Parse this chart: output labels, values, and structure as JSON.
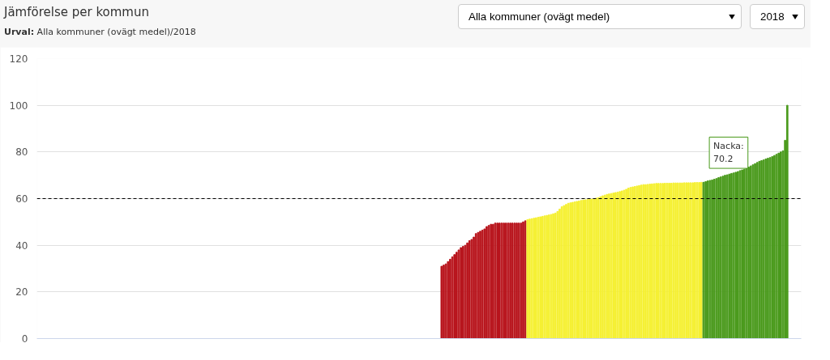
{
  "chart_data": {
    "type": "bar",
    "title": "Jämförelse per kommun",
    "subtitle": "Urval: Alla kommuner (ovägt medel)/2018",
    "categories": [
      null,
      null,
      null,
      null,
      null,
      null,
      null,
      null,
      null,
      null,
      null,
      null,
      null,
      null,
      null,
      null,
      null,
      null,
      null,
      null,
      null,
      null,
      null,
      null,
      null,
      null,
      null,
      null,
      null,
      null,
      null,
      null,
      null,
      null,
      null,
      null,
      null,
      null,
      null,
      null,
      null,
      null,
      null,
      null,
      null,
      null,
      null,
      null,
      null,
      null,
      null,
      null,
      null,
      null,
      null,
      null,
      null,
      null,
      null,
      null,
      null,
      null,
      null,
      null,
      null,
      null,
      null,
      null,
      null,
      null,
      null,
      null,
      null,
      null,
      null,
      null,
      null,
      null,
      null,
      null,
      null,
      null,
      null,
      null,
      null,
      null,
      null,
      null,
      null,
      null,
      null,
      null,
      null,
      null,
      null,
      null,
      null,
      null,
      null,
      null,
      null,
      null,
      null,
      null,
      null,
      null,
      null,
      null,
      null,
      null,
      null,
      null,
      null,
      null,
      null,
      null,
      null,
      null,
      null,
      null,
      null,
      null,
      null,
      null,
      null,
      null,
      null,
      null,
      null,
      null,
      null,
      null,
      null,
      null,
      null,
      null,
      null,
      null,
      null,
      null,
      null,
      null,
      null,
      null,
      null,
      null,
      null,
      null,
      null,
      null,
      null,
      null,
      null,
      null,
      null,
      null,
      null,
      null,
      null,
      null,
      null,
      null,
      null,
      null,
      null,
      null,
      null,
      null,
      null,
      null,
      null,
      null,
      null,
      null,
      null,
      null,
      null,
      null,
      null,
      null,
      null,
      null,
      null,
      null,
      null,
      null,
      null,
      null,
      null,
      null,
      null,
      null,
      null,
      null,
      null,
      null,
      null,
      null,
      null,
      null,
      null,
      null,
      null,
      null,
      null,
      null,
      null,
      null,
      null,
      null,
      null,
      null,
      null,
      null,
      null,
      null,
      null,
      null,
      null,
      null,
      null,
      null,
      null,
      null,
      null,
      null,
      null,
      null,
      null,
      null,
      null,
      null,
      null,
      null,
      null,
      null,
      null,
      null,
      null,
      null,
      null,
      null,
      null,
      null,
      null,
      null,
      null,
      null,
      null,
      null,
      null,
      null,
      null,
      null,
      null,
      null,
      null,
      null,
      null,
      null,
      null,
      null,
      null,
      null,
      null,
      null,
      null,
      null,
      null,
      null,
      null,
      null,
      null,
      null,
      null,
      null,
      null,
      null,
      null,
      null,
      null,
      null,
      null,
      null,
      null,
      null,
      null,
      null,
      null,
      null,
      null,
      null,
      null,
      null,
      null,
      null,
      null,
      null,
      null,
      null,
      null,
      null,
      null,
      null,
      null,
      null,
      null,
      null,
      null,
      null,
      null,
      null,
      null,
      null,
      null,
      null,
      null,
      null,
      null,
      null,
      null,
      null,
      null,
      null,
      null,
      null,
      null,
      null,
      null,
      null,
      null,
      null,
      null,
      null,
      null,
      null,
      null,
      null,
      null,
      null,
      null,
      null,
      null,
      null,
      null,
      null,
      null,
      null,
      null,
      null,
      null,
      null,
      null,
      null,
      null,
      null
    ],
    "values": [
      null,
      null,
      null,
      null,
      null,
      null,
      null,
      null,
      null,
      null,
      null,
      null,
      null,
      null,
      null,
      null,
      null,
      null,
      null,
      null,
      null,
      null,
      null,
      null,
      null,
      null,
      null,
      null,
      null,
      null,
      null,
      null,
      null,
      null,
      null,
      null,
      null,
      null,
      null,
      null,
      null,
      null,
      null,
      null,
      null,
      null,
      null,
      null,
      null,
      null,
      null,
      null,
      null,
      null,
      null,
      null,
      null,
      null,
      null,
      null,
      null,
      null,
      null,
      null,
      null,
      null,
      null,
      null,
      null,
      null,
      null,
      null,
      null,
      null,
      null,
      null,
      null,
      null,
      null,
      null,
      null,
      null,
      null,
      null,
      null,
      null,
      null,
      null,
      null,
      null,
      null,
      null,
      null,
      null,
      null,
      null,
      null,
      null,
      null,
      null,
      null,
      null,
      null,
      null,
      null,
      null,
      null,
      null,
      null,
      null,
      null,
      null,
      null,
      null,
      null,
      null,
      null,
      null,
      null,
      null,
      null,
      null,
      null,
      null,
      null,
      null,
      null,
      null,
      null,
      null,
      null,
      null,
      null,
      null,
      null,
      null,
      null,
      null,
      null,
      null,
      null,
      null,
      null,
      null,
      null,
      null,
      null,
      null,
      null,
      null,
      null,
      null,
      null,
      null,
      null,
      null,
      null,
      null,
      null,
      null,
      null,
      null,
      null,
      null,
      null,
      null,
      null,
      null,
      null,
      null,
      null,
      null,
      null,
      null,
      null,
      null,
      null,
      null,
      null,
      null,
      null,
      null,
      null,
      null,
      null,
      null,
      null,
      null,
      31,
      31.5,
      32,
      33,
      34,
      35,
      36,
      37,
      38,
      39,
      39.5,
      40,
      41,
      42,
      42.5,
      43.5,
      45,
      45.5,
      46,
      46.5,
      47,
      48,
      48.5,
      49,
      49,
      49.5,
      49.5,
      49.5,
      49.5,
      49.5,
      49.5,
      49.5,
      49.5,
      49.5,
      49.5,
      49.5,
      49.5,
      49.5,
      50,
      50.5,
      51,
      51.2,
      51.4,
      51.6,
      51.8,
      52,
      52.2,
      52.4,
      52.6,
      52.8,
      53,
      53.2,
      53.5,
      53.8,
      54.5,
      55.5,
      56.5,
      57,
      57.5,
      58,
      58.2,
      58.4,
      58.6,
      58.8,
      59,
      59.2,
      59.4,
      59.5,
      59.6,
      59.7,
      59.8,
      60,
      60.2,
      60.4,
      60.8,
      61.2,
      61.5,
      61.8,
      62,
      62.2,
      62.4,
      62.6,
      62.8,
      63,
      63.3,
      63.6,
      64,
      64.5,
      64.8,
      65,
      65.2,
      65.4,
      65.6,
      65.8,
      66,
      66,
      66.1,
      66.2,
      66.3,
      66.4,
      66.5,
      66.5,
      66.5,
      66.5,
      66.6,
      66.6,
      66.6,
      66.6,
      66.7,
      66.7,
      66.7,
      66.7,
      66.7,
      66.8,
      66.8,
      66.8,
      66.8,
      66.8,
      66.9,
      66.9,
      66.9,
      67,
      67,
      67.3,
      67.6,
      67.8,
      68,
      68.3,
      68.6,
      69,
      69.3,
      69.6,
      70,
      70.2,
      70.5,
      70.8,
      71,
      71.3,
      71.6,
      72,
      72.3,
      72.6,
      73,
      73.5,
      74,
      74.5,
      75,
      75.5,
      76,
      76.3,
      76.6,
      77,
      77.3,
      77.6,
      78,
      78.5,
      79,
      79.5,
      80,
      80.5,
      85,
      100,
      null,
      null,
      null,
      null,
      null,
      null
    ],
    "colors": [
      null,
      null,
      null,
      null,
      null,
      null,
      null,
      null,
      null,
      null,
      null,
      null,
      null,
      null,
      null,
      null,
      null,
      null,
      null,
      null,
      null,
      null,
      null,
      null,
      null,
      null,
      null,
      null,
      null,
      null,
      null,
      null,
      null,
      null,
      null,
      null,
      null,
      null,
      null,
      null,
      null,
      null,
      null,
      null,
      null,
      null,
      null,
      null,
      null,
      null,
      null,
      null,
      null,
      null,
      null,
      null,
      null,
      null,
      null,
      null,
      null,
      null,
      null,
      null,
      null,
      null,
      null,
      null,
      null,
      null,
      null,
      null,
      null,
      null,
      null,
      null,
      null,
      null,
      null,
      null,
      null,
      null,
      null,
      null,
      null,
      null,
      null,
      null,
      null,
      null,
      null,
      null,
      null,
      null,
      null,
      null,
      null,
      null,
      null,
      null,
      null,
      null,
      null,
      null,
      null,
      null,
      null,
      null,
      null,
      null,
      null,
      null,
      null,
      null,
      null,
      null,
      null,
      null,
      null,
      null,
      null,
      null,
      null,
      null,
      null,
      null,
      null,
      null,
      null,
      null,
      null,
      null,
      null,
      null,
      null,
      null,
      null,
      null,
      null,
      null,
      null,
      null,
      null,
      null,
      null,
      null,
      null,
      null,
      null,
      null,
      null,
      null,
      null,
      null,
      null,
      null,
      null,
      null,
      null,
      null,
      null,
      null,
      null,
      null,
      null,
      null,
      null,
      null,
      null,
      null,
      null,
      null,
      null,
      null,
      null,
      null,
      null,
      null,
      null,
      null,
      null,
      null,
      null,
      null,
      null,
      null,
      null,
      null,
      "#b8141c",
      "#b8141c",
      "#b8141c",
      "#b8141c",
      "#b8141c",
      "#b8141c",
      "#b8141c",
      "#b8141c",
      "#b8141c",
      "#b8141c",
      "#b8141c",
      "#b8141c",
      "#b8141c",
      "#b8141c",
      "#b8141c",
      "#b8141c",
      "#b8141c",
      "#b8141c",
      "#b8141c",
      "#b8141c",
      "#b8141c",
      "#b8141c",
      "#b8141c",
      "#b8141c",
      "#b8141c",
      "#b8141c",
      "#b8141c",
      "#b8141c",
      "#b8141c",
      "#b8141c",
      "#b8141c",
      "#b8141c",
      "#b8141c",
      "#b8141c",
      "#b8141c",
      "#b8141c",
      "#b8141c",
      "#b8141c",
      "#b8141c",
      "#b8141c",
      "#f5f032",
      "#f5f032",
      "#f5f032",
      "#f5f032",
      "#f5f032",
      "#f5f032",
      "#f5f032",
      "#f5f032",
      "#f5f032",
      "#f5f032",
      "#f5f032",
      "#f5f032",
      "#f5f032",
      "#f5f032",
      "#f5f032",
      "#f5f032",
      "#f5f032",
      "#f5f032",
      "#f5f032",
      "#f5f032",
      "#f5f032",
      "#f5f032",
      "#f5f032",
      "#f5f032",
      "#f5f032",
      "#f5f032",
      "#f5f032",
      "#f5f032",
      "#f5f032",
      "#f5f032",
      "#f5f032",
      "#f5f032",
      "#f5f032",
      "#f5f032",
      "#f5f032",
      "#f5f032",
      "#f5f032",
      "#f5f032",
      "#f5f032",
      "#f5f032",
      "#f5f032",
      "#f5f032",
      "#f5f032",
      "#f5f032",
      "#f5f032",
      "#f5f032",
      "#f5f032",
      "#f5f032",
      "#f5f032",
      "#f5f032",
      "#f5f032",
      "#f5f032",
      "#f5f032",
      "#f5f032",
      "#f5f032",
      "#f5f032",
      "#f5f032",
      "#f5f032",
      "#f5f032",
      "#f5f032",
      "#f5f032",
      "#f5f032",
      "#f5f032",
      "#f5f032",
      "#f5f032",
      "#f5f032",
      "#f5f032",
      "#f5f032",
      "#f5f032",
      "#f5f032",
      "#f5f032",
      "#f5f032",
      "#f5f032",
      "#f5f032",
      "#f5f032",
      "#f5f032",
      "#f5f032",
      "#f5f032",
      "#f5f032",
      "#f5f032",
      "#f5f032",
      "#f5f032",
      "#4a9a1c",
      "#4a9a1c",
      "#4a9a1c",
      "#4a9a1c",
      "#4a9a1c",
      "#4a9a1c",
      "#4a9a1c",
      "#4a9a1c",
      "#4a9a1c",
      "#4a9a1c",
      "#4a9a1c",
      "#4a9a1c",
      "#4a9a1c",
      "#4a9a1c",
      "#4a9a1c",
      "#4a9a1c",
      "#4a9a1c",
      "#4a9a1c",
      "#4a9a1c",
      "#4a9a1c",
      "#4a9a1c",
      "#4a9a1c",
      "#4a9a1c",
      "#4a9a1c",
      "#4a9a1c",
      "#4a9a1c",
      "#4a9a1c",
      "#4a9a1c",
      "#4a9a1c",
      "#4a9a1c",
      "#4a9a1c",
      "#4a9a1c",
      "#4a9a1c",
      "#4a9a1c",
      "#4a9a1c",
      "#4a9a1c",
      "#4a9a1c",
      "#4a9a1c",
      "#4a9a1c",
      "#4a9a1c",
      null,
      null,
      null,
      null,
      null,
      null
    ],
    "ylim": [
      0,
      120
    ],
    "yticks": [
      0,
      20,
      40,
      60,
      80,
      100,
      120
    ],
    "grid": "y",
    "tick_labels": "y",
    "ref_lines": [
      {
        "axis": "y",
        "value": 60,
        "color": "#000000",
        "line_style": "dashed"
      }
    ],
    "annotations": [
      {
        "text": "Nacka:\n70.2",
        "y": 70.2
      },
      "Alla kommuner (ovägt medel)",
      "2018"
    ]
  }
}
